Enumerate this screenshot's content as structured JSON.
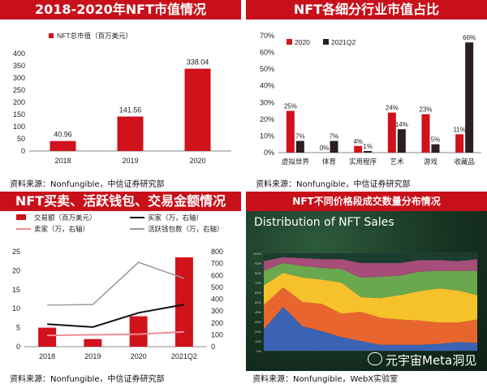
{
  "panels": {
    "p1": {
      "title": "2018-2020年NFT市值情况",
      "source": "资料来源：Nonfungible，中信证券研究部"
    },
    "p2": {
      "title": "NFT各细分行业市值占比",
      "source": "资料来源：Nonfungible，中信证券研究部"
    },
    "p3": {
      "title": "NFT买卖、活跃钱包、交易金额情况",
      "source": "资料来源：Nonfungible，中信证券研究部"
    },
    "p4": {
      "title": "NFT不同价格段成交数量分布情况",
      "source": "资料来源：Nonfungible，WebX实验室",
      "inner_title": "Distribution of NFT Sales",
      "watermark": "元宇宙Meta洞见"
    }
  },
  "colors": {
    "red": "#d0121b",
    "dark": "#2b1f1f",
    "header": "#c8101a",
    "pink": "#f08a96"
  },
  "chart_data": [
    {
      "type": "bar",
      "categories": [
        "2018",
        "2019",
        "2020"
      ],
      "series": [
        {
          "name": "NFT总市值（百万美元）",
          "values": [
            40.96,
            141.56,
            338.04
          ]
        }
      ],
      "data_labels": [
        "40.96",
        "141.56",
        "338.04"
      ],
      "ylim": [
        0,
        400
      ],
      "yticks": [
        "0",
        "50",
        "100",
        "150",
        "200",
        "250",
        "300",
        "350",
        "400"
      ],
      "legend": "top-left"
    },
    {
      "type": "bar",
      "categories": [
        "虚拟世界",
        "体育",
        "实用程序",
        "艺术",
        "游戏",
        "收藏品"
      ],
      "series": [
        {
          "name": "2020",
          "values": [
            25,
            0,
            4,
            24,
            23,
            11
          ],
          "labels": [
            "25%",
            "0%",
            "4%",
            "24%",
            "23%",
            "11%"
          ]
        },
        {
          "name": "2021Q2",
          "values": [
            7,
            7,
            1,
            14,
            5,
            66
          ],
          "labels": [
            "7%",
            "7%",
            "1%",
            "14%",
            "5%",
            "66%"
          ]
        }
      ],
      "ylim": [
        0,
        70
      ],
      "yticks": [
        "0%",
        "10%",
        "20%",
        "30%",
        "40%",
        "50%",
        "60%",
        "70%"
      ],
      "legend": "top-left"
    },
    {
      "type": "bar",
      "categories": [
        "2018",
        "2019",
        "2020",
        "2021Q2"
      ],
      "series": [
        {
          "name": "交易额（百万美元）",
          "kind": "bar",
          "axis": "left",
          "values": [
            5,
            2,
            8,
            23.5
          ]
        },
        {
          "name": "买家（万，右轴）",
          "kind": "line",
          "axis": "right",
          "values": [
            190,
            165,
            285,
            355
          ]
        },
        {
          "name": "卖家（万，右轴）",
          "kind": "line",
          "axis": "right",
          "values": [
            95,
            100,
            105,
            125
          ]
        },
        {
          "name": "活跃钱包数（万，右轴）",
          "kind": "line",
          "axis": "right",
          "values": [
            350,
            355,
            710,
            575
          ]
        }
      ],
      "ylim": [
        0,
        25
      ],
      "ylim_right": [
        0,
        800
      ],
      "yticks": [
        "0",
        "5",
        "10",
        "15",
        "20",
        "25"
      ],
      "yticks_right": [
        "0",
        "100",
        "200",
        "300",
        "400",
        "500",
        "600",
        "700",
        "800"
      ],
      "legend": "top"
    },
    {
      "type": "area",
      "title": "Distribution of NFT Sales",
      "x_count": 12,
      "series": [
        {
          "color": "#3a63b4",
          "values": [
            22,
            45,
            25,
            20,
            14,
            10,
            6,
            6,
            6,
            7,
            9,
            8
          ]
        },
        {
          "color": "#e8662e",
          "values": [
            25,
            20,
            25,
            28,
            24,
            30,
            28,
            26,
            25,
            22,
            20,
            24
          ]
        },
        {
          "color": "#f6c22c",
          "values": [
            20,
            15,
            25,
            25,
            32,
            15,
            20,
            25,
            30,
            35,
            33,
            25
          ]
        },
        {
          "color": "#6aa84f",
          "values": [
            15,
            10,
            12,
            12,
            14,
            20,
            22,
            20,
            20,
            18,
            20,
            25
          ]
        },
        {
          "color": "#a64d79",
          "values": [
            10,
            6,
            8,
            9,
            10,
            15,
            14,
            13,
            12,
            11,
            10,
            12
          ]
        },
        {
          "color": "#1a3d2e",
          "values": [
            8,
            4,
            5,
            6,
            6,
            10,
            10,
            10,
            7,
            7,
            8,
            6
          ]
        }
      ],
      "ylim": [
        0,
        100
      ]
    }
  ]
}
